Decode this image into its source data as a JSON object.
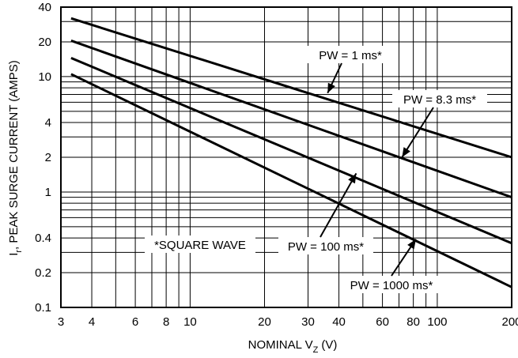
{
  "chart_data": {
    "type": "line",
    "title": "",
    "xlabel_main": "NOMINAL V",
    "xlabel_sub": "Z",
    "xlabel_unit": "(V)",
    "ylabel_main": "I",
    "ylabel_sub": "r",
    "ylabel_rest": ", PEAK SURGE CURRENT (AMPS)",
    "xscale": "log",
    "yscale": "log",
    "xlim": [
      3,
      200
    ],
    "ylim": [
      0.1,
      40
    ],
    "grid": true,
    "x_ticks": [
      3,
      4,
      6,
      8,
      10,
      20,
      30,
      40,
      60,
      80,
      100,
      200
    ],
    "x_tick_labels": [
      "3",
      "4",
      "6",
      "8",
      "10",
      "20",
      "30",
      "40",
      "60",
      "80",
      "100",
      "200"
    ],
    "y_ticks": [
      0.1,
      0.2,
      0.4,
      1,
      2,
      4,
      10,
      20,
      40
    ],
    "y_tick_labels": [
      "0.1",
      "0.2",
      "0.4",
      "1",
      "2",
      "4",
      "10",
      "20",
      "40"
    ],
    "series": [
      {
        "name": "PW = 1 ms*",
        "x": [
          3.3,
          200
        ],
        "y": [
          32,
          2
        ]
      },
      {
        "name": "PW = 8.3 ms*",
        "x": [
          3.3,
          200
        ],
        "y": [
          20.5,
          0.9
        ]
      },
      {
        "name": "PW = 100 ms*",
        "x": [
          3.3,
          200
        ],
        "y": [
          14.5,
          0.36
        ]
      },
      {
        "name": "PW = 1000 ms*",
        "x": [
          3.3,
          200
        ],
        "y": [
          10.5,
          0.15
        ]
      }
    ],
    "annotations": [
      {
        "id": "pw1",
        "text": "PW = 1 ms*",
        "arrow_to": [
          36,
          7.2
        ]
      },
      {
        "id": "pw83",
        "text": "PW = 8.3 ms*",
        "arrow_to": [
          72,
          2.0
        ]
      },
      {
        "id": "pw100",
        "text": "PW = 100 ms*",
        "arrow_to": [
          47,
          1.45
        ]
      },
      {
        "id": "pw1000",
        "text": "PW = 1000 ms*",
        "arrow_to": [
          82,
          0.39
        ]
      },
      {
        "id": "sq",
        "text": "*SQUARE WAVE",
        "arrow_to": null
      }
    ]
  }
}
